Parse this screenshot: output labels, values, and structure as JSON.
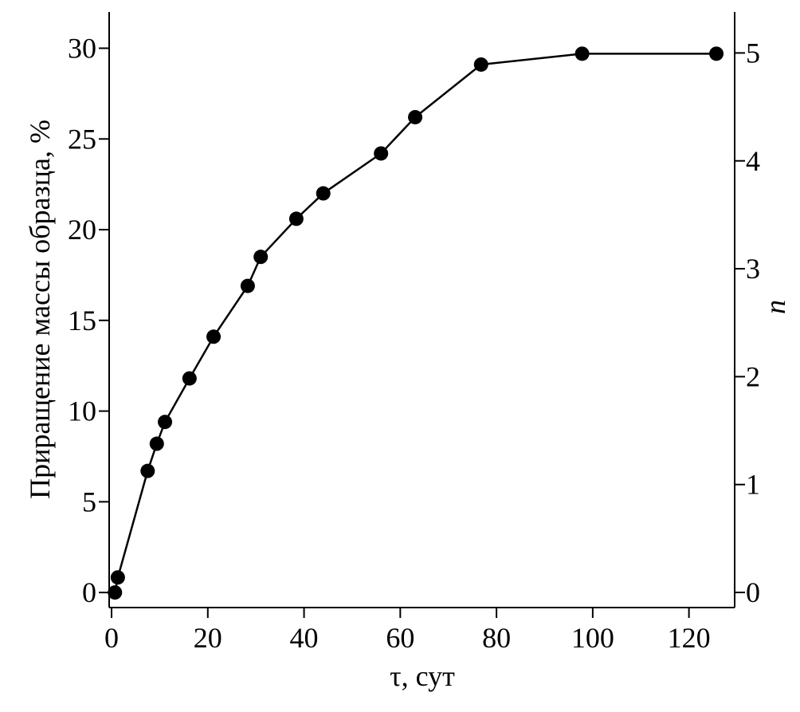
{
  "chart_data": {
    "type": "line",
    "x_label": "τ, сут",
    "y_label": "Приращение массы образца, %",
    "y2_label": "n",
    "x": [
      0.7,
      1.3,
      7.5,
      9.4,
      11.1,
      16.2,
      21.2,
      28.3,
      31.0,
      38.4,
      44.0,
      56.0,
      63.1,
      76.8,
      97.8,
      125.7
    ],
    "values": [
      0,
      0.83,
      6.7,
      8.2,
      9.4,
      11.8,
      14.1,
      16.9,
      18.5,
      20.6,
      22.0,
      24.2,
      26.2,
      29.1,
      29.7,
      29.7
    ],
    "color": "#000000",
    "xlim": [
      -0.5,
      129.5
    ],
    "xticks": [
      0,
      20,
      40,
      60,
      80,
      100,
      120
    ],
    "ylim": [
      -0.83,
      32
    ],
    "yticks": [
      0,
      5,
      10,
      15,
      20,
      25,
      30
    ],
    "y2lim": [
      -0.14,
      5.38
    ],
    "y2ticks": [
      0,
      1,
      2,
      3,
      4,
      5
    ]
  }
}
